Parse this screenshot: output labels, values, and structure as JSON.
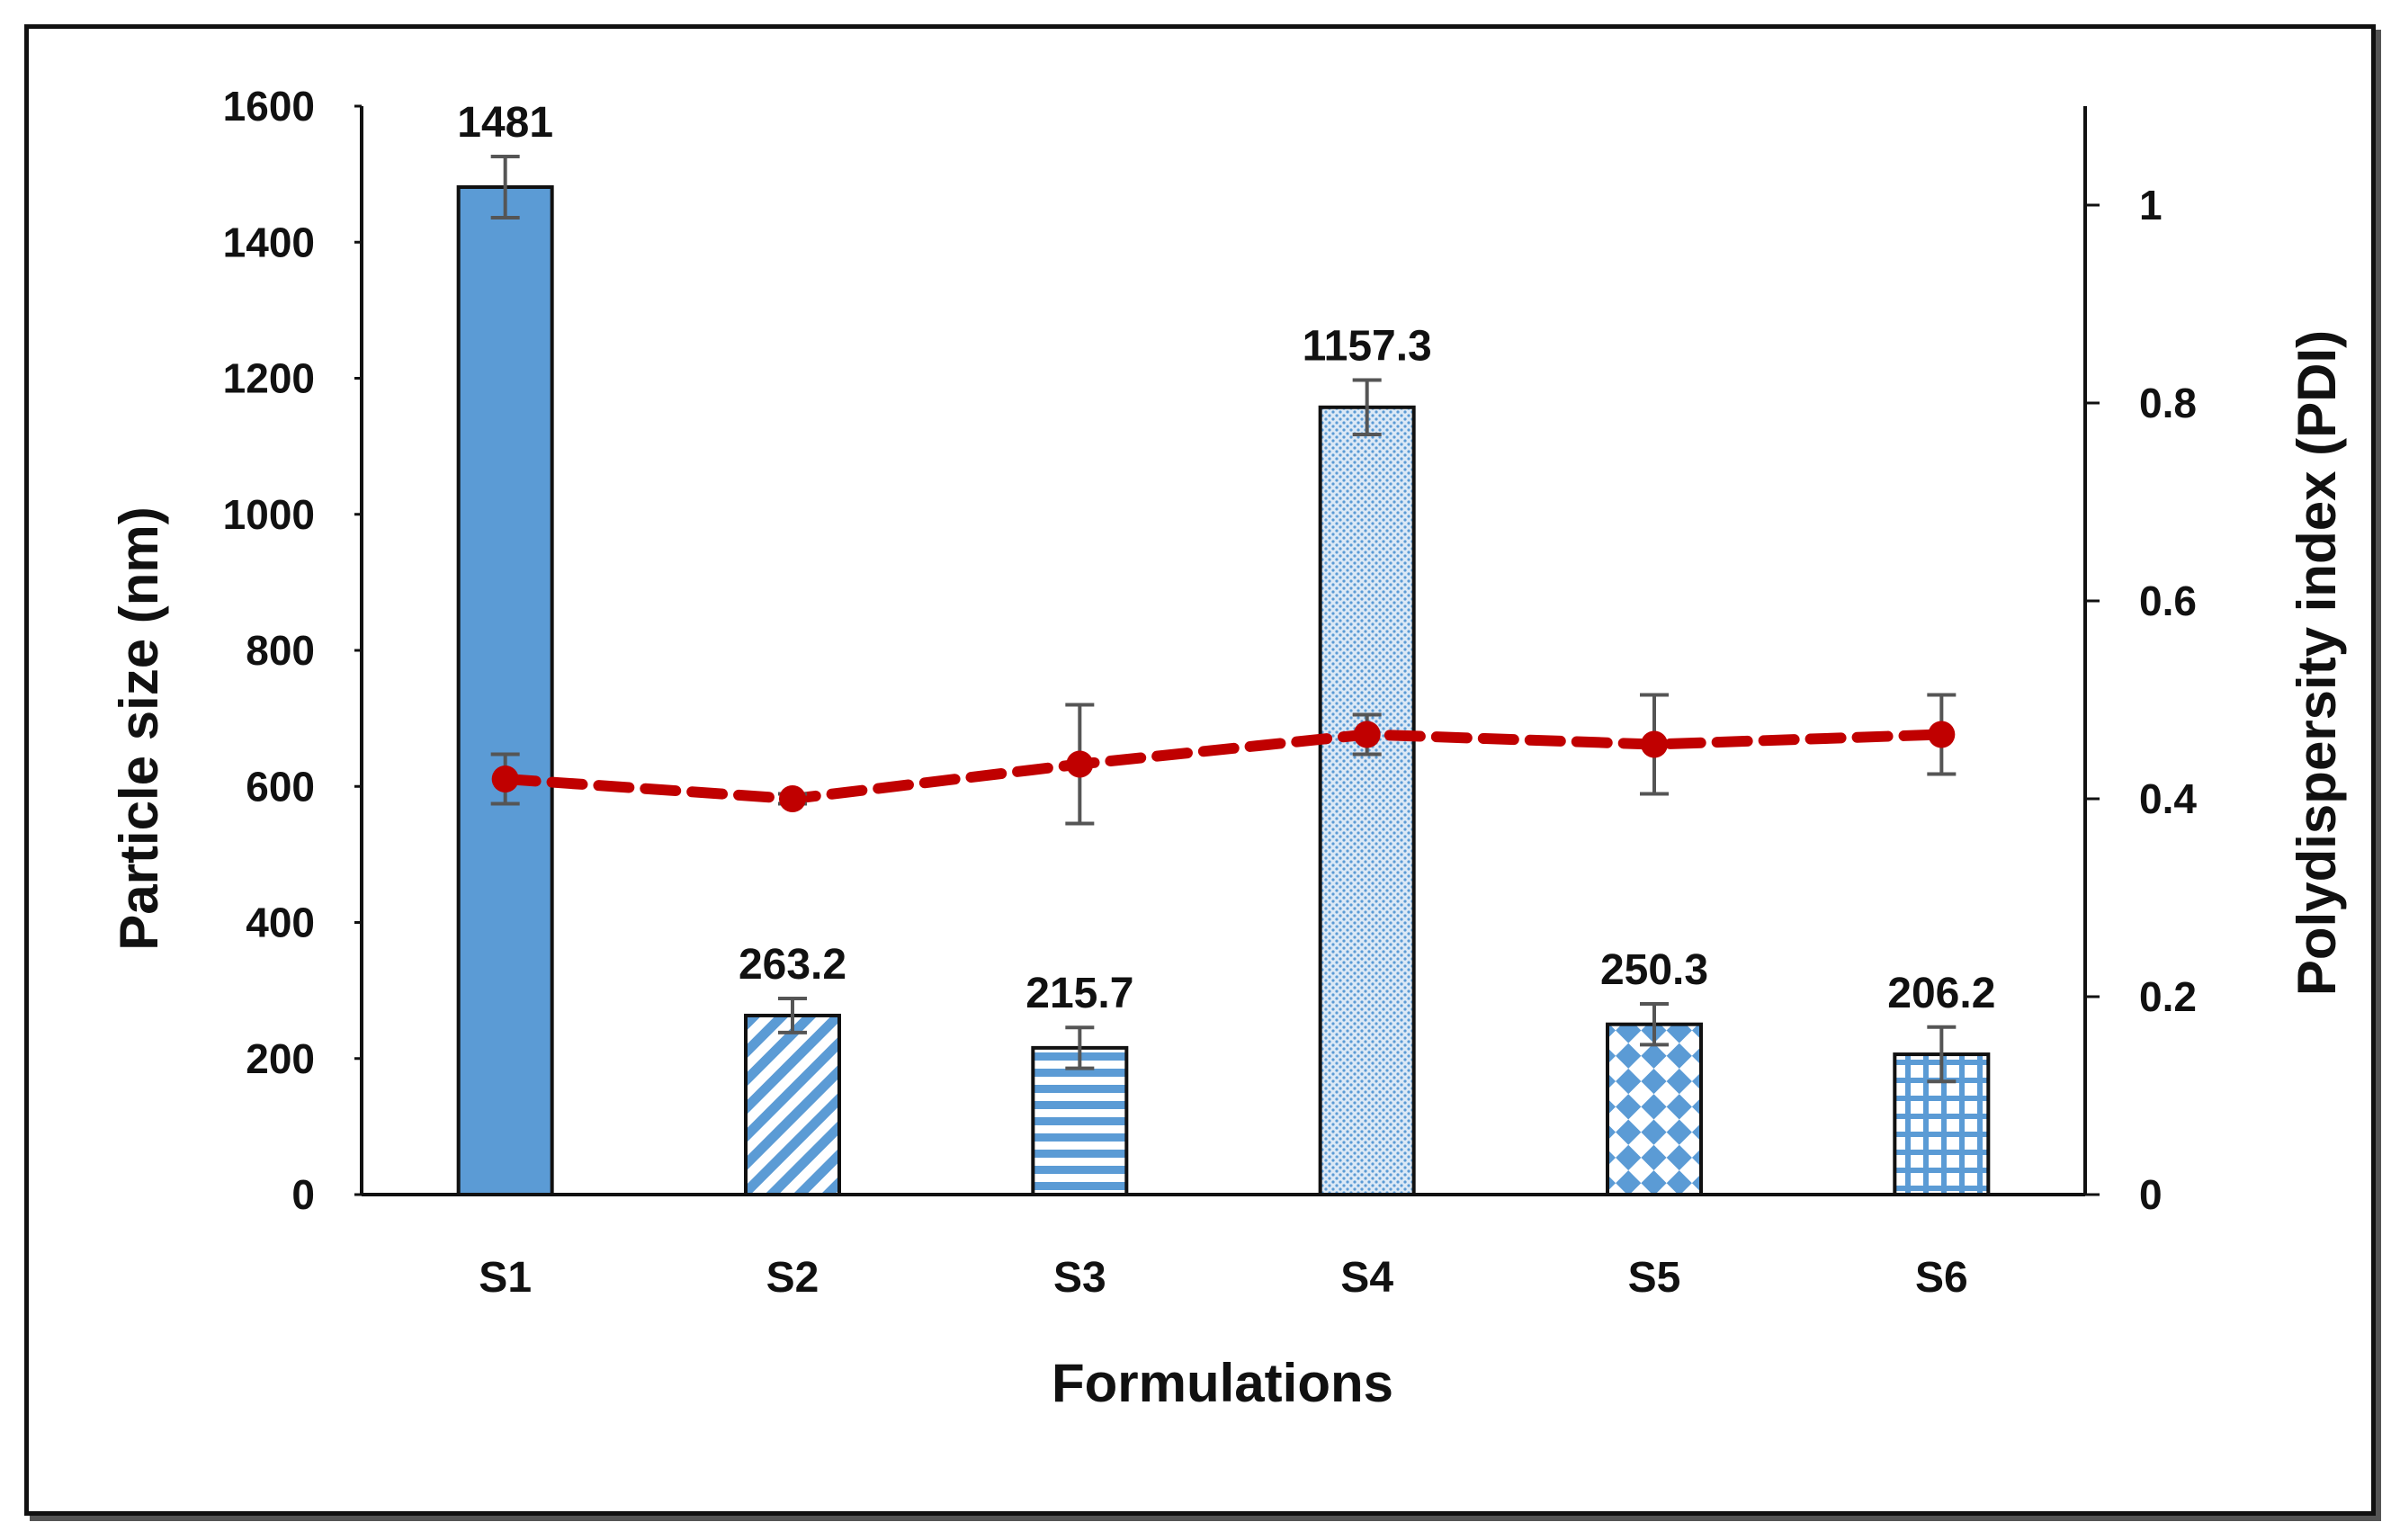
{
  "chart_data": {
    "type": "bar",
    "categories": [
      "S1",
      "S2",
      "S3",
      "S4",
      "S5",
      "S6"
    ],
    "xlabel": "Formulations",
    "ylabel": "Particle size (nm)",
    "y2label": "Polydispersity index (PDI)",
    "ylim": [
      0,
      1600
    ],
    "yticks": [
      "0",
      "200",
      "400",
      "600",
      "800",
      "1000",
      "1200",
      "1400",
      "1600"
    ],
    "y2lim": [
      0,
      1.1
    ],
    "y2ticks": [
      "0",
      "0.2",
      "0.4",
      "0.6",
      "0.8",
      "1"
    ],
    "grid": false,
    "series": [
      {
        "kind": "bar",
        "axis": "left",
        "values": [
          1481,
          263.2,
          215.7,
          1157.3,
          250.3,
          206.2
        ],
        "labels": [
          "1481",
          "263.2",
          "215.7",
          "1157.3",
          "250.3",
          "206.2"
        ],
        "errors": [
          45,
          25,
          30,
          40,
          30,
          40
        ],
        "fill_patterns": [
          "solid",
          "diagonal-stripes",
          "horizontal-stripes",
          "dots",
          "checkerboard",
          "grid"
        ],
        "color": "#5b9bd5"
      },
      {
        "kind": "line",
        "axis": "right",
        "style": "dashed",
        "values": [
          0.42,
          0.4,
          0.435,
          0.465,
          0.455,
          0.465
        ],
        "errors": [
          0.025,
          0.005,
          0.06,
          0.02,
          0.05,
          0.04
        ],
        "color": "#c00000"
      }
    ]
  }
}
